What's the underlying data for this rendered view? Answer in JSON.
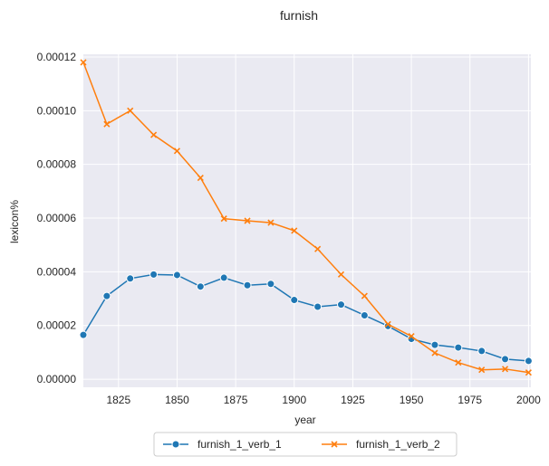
{
  "chart_data": {
    "type": "line",
    "title": "furnish",
    "xlabel": "year",
    "ylabel": "lexicon%",
    "xlim": [
      1810,
      2001
    ],
    "ylim": [
      -3e-06,
      0.000121
    ],
    "xticks": [
      1825,
      1850,
      1875,
      1900,
      1925,
      1950,
      1975,
      2000
    ],
    "xtick_labels": [
      "1825",
      "1850",
      "1875",
      "1900",
      "1925",
      "1950",
      "1975",
      "2000"
    ],
    "yticks": [
      0,
      2e-05,
      4e-05,
      6e-05,
      8e-05,
      0.0001,
      0.00012
    ],
    "ytick_labels": [
      "0.00000",
      "0.00002",
      "0.00004",
      "0.00006",
      "0.00008",
      "0.00010",
      "0.00012"
    ],
    "grid": true,
    "legend_position": "bottom-center",
    "x": [
      1810,
      1820,
      1830,
      1840,
      1850,
      1860,
      1870,
      1880,
      1890,
      1900,
      1910,
      1920,
      1930,
      1940,
      1950,
      1960,
      1970,
      1980,
      1990,
      2000
    ],
    "series": [
      {
        "name": "furnish_1_verb_1",
        "color": "#1f77b4",
        "marker": "circle",
        "values": [
          1.65e-05,
          3.1e-05,
          3.75e-05,
          3.9e-05,
          3.88e-05,
          3.45e-05,
          3.78e-05,
          3.5e-05,
          3.55e-05,
          2.95e-05,
          2.7e-05,
          2.78e-05,
          2.38e-05,
          1.98e-05,
          1.5e-05,
          1.28e-05,
          1.18e-05,
          1.05e-05,
          7.5e-06,
          6.8e-06
        ]
      },
      {
        "name": "furnish_1_verb_2",
        "color": "#ff7f0e",
        "marker": "x",
        "values": [
          0.000118,
          9.5e-05,
          0.0001,
          9.1e-05,
          8.5e-05,
          7.5e-05,
          5.98e-05,
          5.9e-05,
          5.83e-05,
          5.53e-05,
          4.85e-05,
          3.9e-05,
          3.1e-05,
          2.05e-05,
          1.6e-05,
          9.8e-06,
          6.2e-06,
          3.5e-06,
          3.8e-06,
          2.5e-06
        ]
      }
    ]
  }
}
